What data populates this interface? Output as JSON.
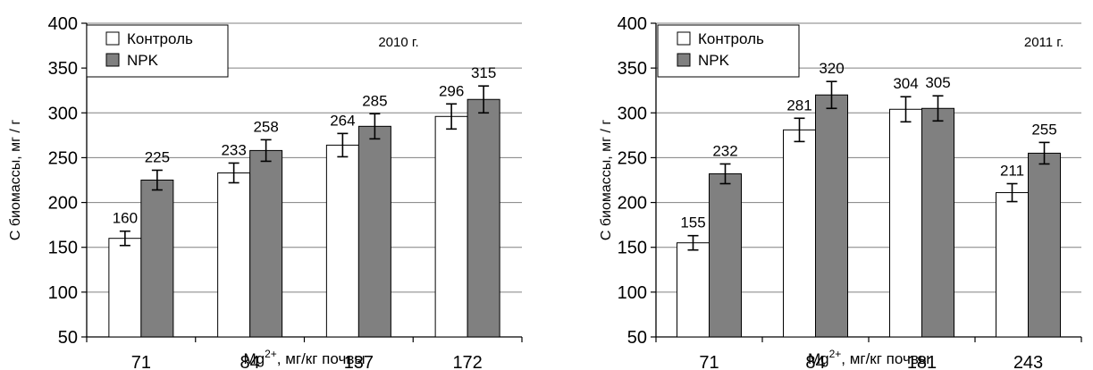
{
  "chart_data": [
    {
      "type": "bar",
      "annotation": "2010 г.",
      "categories": [
        "71",
        "84",
        "137",
        "172"
      ],
      "series": [
        {
          "name": "Контроль",
          "values": [
            160,
            233,
            264,
            296
          ],
          "error": [
            8,
            11,
            13,
            14
          ],
          "color": "#ffffff"
        },
        {
          "name": "NPK",
          "values": [
            225,
            258,
            285,
            315
          ],
          "error": [
            11,
            12,
            14,
            15
          ],
          "color": "#808080"
        }
      ],
      "xlabel_main": "Mg",
      "xlabel_sup": "2+",
      "xlabel_rest": ", мг/кг почвы",
      "ylabel": "С биомассы, мг / г",
      "ylim": [
        50,
        400
      ],
      "yticks": [
        50,
        100,
        150,
        200,
        250,
        300,
        350,
        400
      ],
      "grid": true,
      "legend_position": "top-left"
    },
    {
      "type": "bar",
      "annotation": "2011 г.",
      "categories": [
        "71",
        "84",
        "181",
        "243"
      ],
      "series": [
        {
          "name": "Контроль",
          "values": [
            155,
            281,
            304,
            211
          ],
          "error": [
            8,
            13,
            14,
            10
          ],
          "color": "#ffffff"
        },
        {
          "name": "NPK",
          "values": [
            232,
            320,
            305,
            255
          ],
          "error": [
            11,
            15,
            14,
            12
          ],
          "color": "#808080"
        }
      ],
      "xlabel_main": "Mg",
      "xlabel_sup": "2+",
      "xlabel_rest": ", мг/кг почвы",
      "ylabel": "С биомассы, мг / г",
      "ylim": [
        50,
        400
      ],
      "yticks": [
        50,
        100,
        150,
        200,
        250,
        300,
        350,
        400
      ],
      "grid": true,
      "legend_position": "top-left"
    }
  ]
}
